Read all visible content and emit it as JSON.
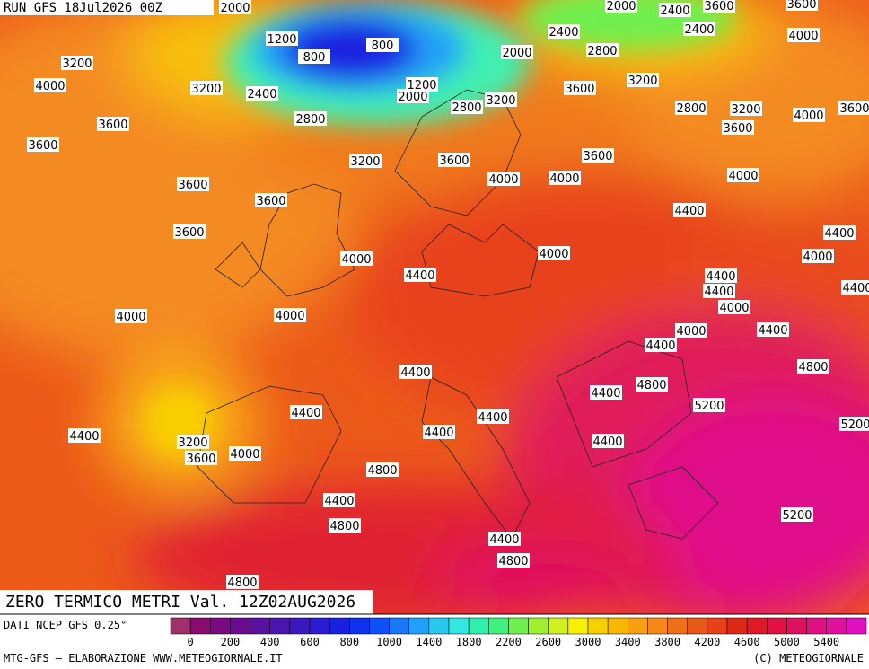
{
  "header": {
    "run": "RUN GFS 18Jul2026 00Z"
  },
  "title": "ZERO TERMICO METRI Val. 12Z02AUG2026",
  "source": "DATI NCEP GFS 0.25°",
  "footer_left": "MTG-GFS — ELABORAZIONE WWW.METEOGIORNALE.IT",
  "footer_right": "(C) METEOGIORNALE",
  "legend": {
    "colors": [
      "#a0306a",
      "#8a0a6e",
      "#7a0a80",
      "#6a0a90",
      "#5a10a0",
      "#4a14b0",
      "#3a18c0",
      "#2a1cd0",
      "#1a20e0",
      "#1030f0",
      "#1050f8",
      "#1878f8",
      "#20a0f8",
      "#28c8f0",
      "#30e8e0",
      "#30f0b0",
      "#40f080",
      "#70f050",
      "#a0f030",
      "#d0f020",
      "#f8f000",
      "#f8d000",
      "#f8b800",
      "#f8a010",
      "#f88818",
      "#f07018",
      "#e85818",
      "#e84018",
      "#e02818",
      "#e01828",
      "#e01040",
      "#e01060",
      "#e01080",
      "#e010a0",
      "#e010c0"
    ],
    "labels": [
      "0",
      "200",
      "400",
      "600",
      "800",
      "1000",
      "1400",
      "1800",
      "2200",
      "2600",
      "3000",
      "3400",
      "3800",
      "4200",
      "4600",
      "5000",
      "5400"
    ]
  },
  "contour_labels": [
    "2000",
    "1200",
    "800",
    "800",
    "3200",
    "4000",
    "3200",
    "2400",
    "1200",
    "2000",
    "2800",
    "3200",
    "3600",
    "3200",
    "2000",
    "2800",
    "2400",
    "2000",
    "2400",
    "3600",
    "3600",
    "2400",
    "4000",
    "2800",
    "3200",
    "4000",
    "3600",
    "3600",
    "2800",
    "3600",
    "3600",
    "3200",
    "3600",
    "3600",
    "4000",
    "4000",
    "4000",
    "3600",
    "3600",
    "4400",
    "3600",
    "4400",
    "4000",
    "4000",
    "4000",
    "4400",
    "4400",
    "4400",
    "4400",
    "4000",
    "4000",
    "4000",
    "4000",
    "4400",
    "4400",
    "4800",
    "4400",
    "4400",
    "4800",
    "5200",
    "4400",
    "4400",
    "5200",
    "4400",
    "4400",
    "4400",
    "3200",
    "4000",
    "3600",
    "4800",
    "4400",
    "4800",
    "5200",
    "4400",
    "4800",
    "4800"
  ]
}
